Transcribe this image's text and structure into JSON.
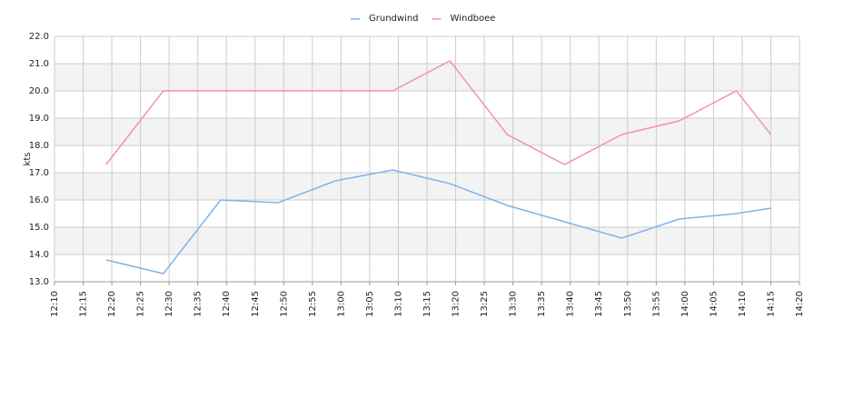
{
  "chart_data": {
    "type": "line",
    "y_label": "kts",
    "x": [
      "12:19",
      "12:29",
      "12:39",
      "12:49",
      "12:59",
      "13:09",
      "13:19",
      "13:29",
      "13:39",
      "13:49",
      "13:59",
      "14:09",
      "14:15"
    ],
    "series": [
      {
        "name": "Grundwind",
        "color": "#7cb5ec",
        "values": [
          13.8,
          13.3,
          16.0,
          15.9,
          16.7,
          17.1,
          16.6,
          15.8,
          15.2,
          14.6,
          15.3,
          15.5,
          15.7
        ]
      },
      {
        "name": "Windboee",
        "color": "#f28fbf",
        "values": [
          17.3,
          20.0,
          20.0,
          20.0,
          20.0,
          20.0,
          21.1,
          18.4,
          17.3,
          18.4,
          18.9,
          20.0,
          18.4
        ]
      }
    ],
    "xlim": [
      "12:10",
      "14:20"
    ],
    "xticks": [
      "12:10",
      "12:15",
      "12:20",
      "12:25",
      "12:30",
      "12:35",
      "12:40",
      "12:45",
      "12:50",
      "12:55",
      "13:00",
      "13:05",
      "13:10",
      "13:15",
      "13:20",
      "13:25",
      "13:30",
      "13:35",
      "13:40",
      "13:45",
      "13:50",
      "13:55",
      "14:00",
      "14:05",
      "14:10",
      "14:15",
      "14:20"
    ],
    "ylim": [
      13,
      22
    ],
    "yticks": [
      {
        "value": 13,
        "label": "13.0"
      },
      {
        "value": 14,
        "label": "14.0"
      },
      {
        "value": 15,
        "label": "15.0"
      },
      {
        "value": 16,
        "label": "16.0"
      },
      {
        "value": 17,
        "label": "17.0"
      },
      {
        "value": 18,
        "label": "18.0"
      },
      {
        "value": 19,
        "label": "19.0"
      },
      {
        "value": 20,
        "label": "20.0"
      },
      {
        "value": 21,
        "label": "21.0"
      },
      {
        "value": 22,
        "label": "22.0"
      }
    ],
    "grid": true,
    "legend": "top"
  }
}
